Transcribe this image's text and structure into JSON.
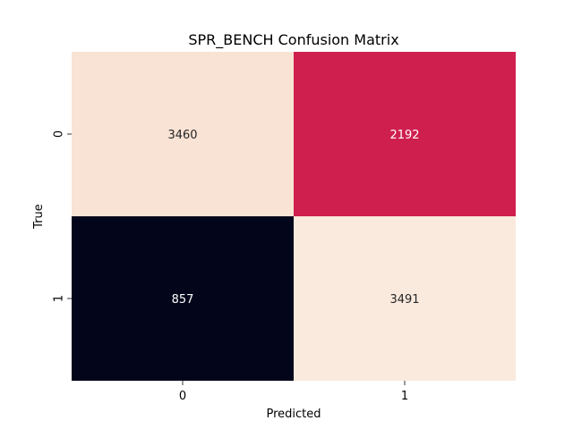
{
  "chart_data": {
    "type": "heatmap",
    "title": "SPR_BENCH Confusion Matrix",
    "xlabel": "Predicted",
    "ylabel": "True",
    "x_categories": [
      "0",
      "1"
    ],
    "y_categories": [
      "0",
      "1"
    ],
    "values": [
      [
        3460,
        2192
      ],
      [
        857,
        3491
      ]
    ],
    "colormap": "rocket",
    "color_scale": [
      {
        "value": 857,
        "color": "#03051a"
      },
      {
        "value": 2192,
        "color": "#cf1f4e"
      },
      {
        "value": 3460,
        "color": "#f8e3d5"
      },
      {
        "value": 3491,
        "color": "#faeade"
      }
    ],
    "annotations": true,
    "colorbar": false
  }
}
